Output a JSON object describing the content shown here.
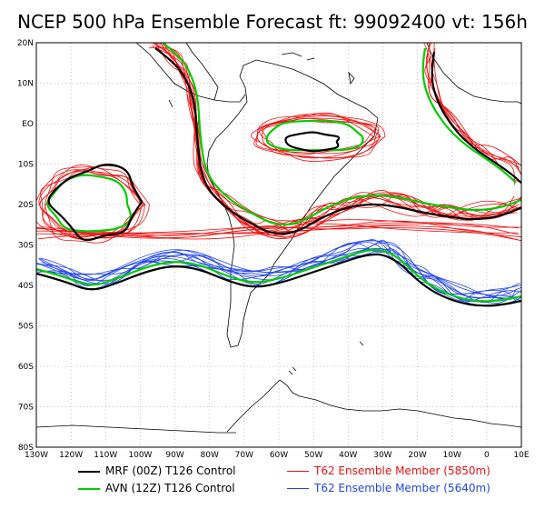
{
  "title": "NCEP 500 hPa Ensemble Forecast  ft: 99092400 vt: 156h",
  "colors": {
    "black": "#000000",
    "green": "#00cc00",
    "red": "#ee1111",
    "blue": "#2244ee",
    "coast": "#000000",
    "grid": "#888888"
  },
  "map": {
    "lon_range": [
      -130,
      10
    ],
    "lat_range": [
      -80,
      20
    ],
    "grid": "dotted"
  },
  "x_ticks": [
    "130W",
    "120W",
    "110W",
    "100W",
    "90W",
    "80W",
    "70W",
    "60W",
    "50W",
    "40W",
    "30W",
    "20W",
    "10W",
    "0",
    "10E"
  ],
  "y_ticks": [
    "20N",
    "10N",
    "EO",
    "10S",
    "20S",
    "30S",
    "40S",
    "50S",
    "60S",
    "70S",
    "80S"
  ],
  "legend": {
    "black": "MRF (00Z) T126 Control",
    "green": "AVN (12Z) T126 Control",
    "red": "T62 Ensemble Member (5850m)",
    "blue": "T62 Ensemble Member (5640m)"
  }
}
